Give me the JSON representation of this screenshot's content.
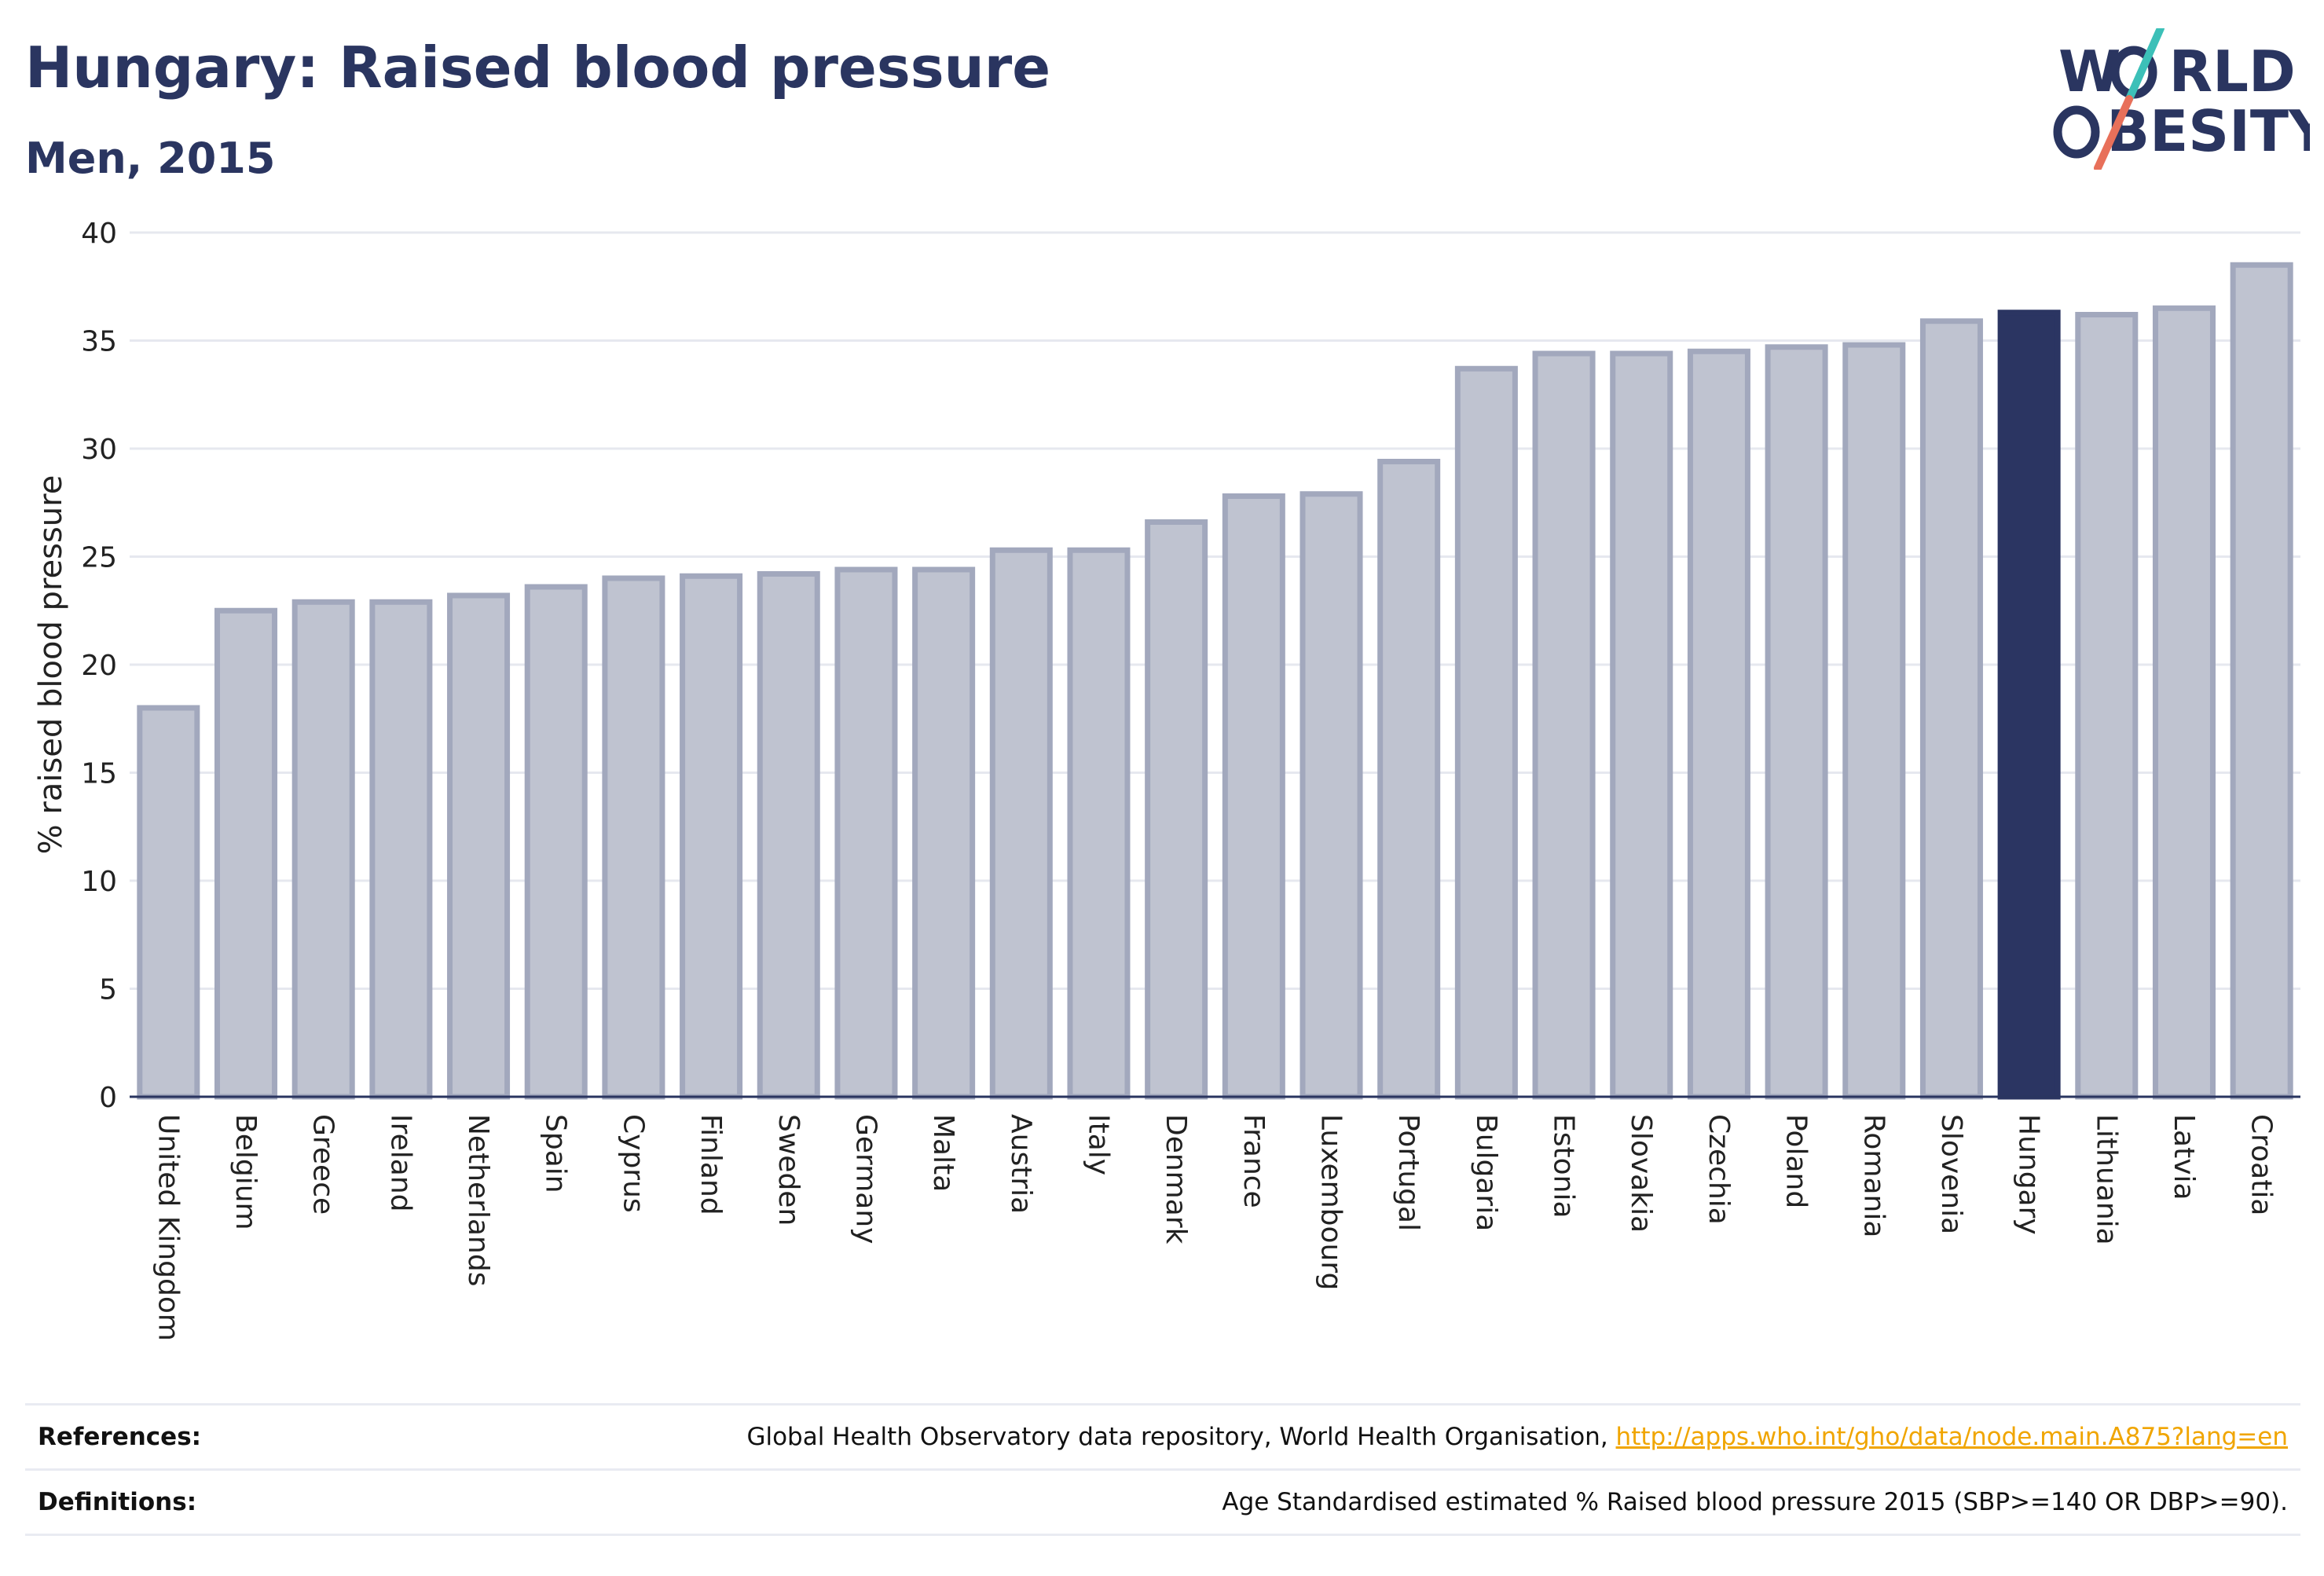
{
  "header": {
    "title": "Hungary: Raised blood pressure",
    "subtitle": "Men, 2015"
  },
  "logo": {
    "line1": "W",
    "line1_rest": "RLD",
    "line2": "BESITY",
    "accent_teal": "#3cc0b8",
    "accent_coral": "#e8705a",
    "text_color": "#2a3560"
  },
  "colors": {
    "bar_default": "#bfc3d0",
    "bar_default_stroke": "#a2a8bd",
    "bar_highlight": "#2b3562",
    "gridline": "#e6e8ef",
    "axis": "#2a3560"
  },
  "chart_data": {
    "type": "bar",
    "ylabel": "% raised blood pressure",
    "ylim": [
      0,
      40
    ],
    "yticks": [
      0,
      5,
      10,
      15,
      20,
      25,
      30,
      35,
      40
    ],
    "grid": true,
    "highlight": "Hungary",
    "categories": [
      "United Kingdom",
      "Belgium",
      "Greece",
      "Ireland",
      "Netherlands",
      "Spain",
      "Cyprus",
      "Finland",
      "Sweden",
      "Germany",
      "Malta",
      "Austria",
      "Italy",
      "Denmark",
      "France",
      "Luxembourg",
      "Portugal",
      "Bulgaria",
      "Estonia",
      "Slovakia",
      "Czechia",
      "Poland",
      "Romania",
      "Slovenia",
      "Hungary",
      "Lithuania",
      "Latvia",
      "Croatia"
    ],
    "values": [
      18.0,
      22.5,
      22.9,
      22.9,
      23.2,
      23.6,
      24.0,
      24.1,
      24.2,
      24.4,
      24.4,
      25.3,
      25.3,
      26.6,
      27.8,
      27.9,
      29.4,
      33.7,
      34.4,
      34.4,
      34.5,
      34.7,
      34.8,
      35.9,
      36.3,
      36.2,
      36.5,
      38.5
    ]
  },
  "footer": {
    "references_label": "References:",
    "references_text": "Global Health Observatory data repository, World Health Organisation, ",
    "references_link": "http://apps.who.int/gho/data/node.main.A875?lang=en",
    "definitions_label": "Definitions:",
    "definitions_text": "Age Standardised estimated % Raised blood pressure 2015 (SBP>=140 OR DBP>=90)."
  }
}
